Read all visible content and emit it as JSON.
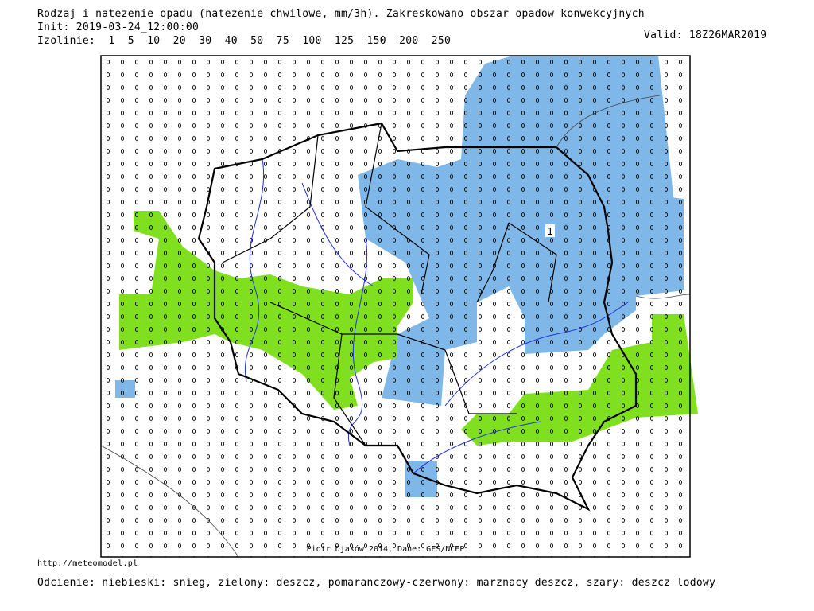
{
  "header": {
    "title": "Rodzaj i natezenie opadu (natezenie chwilowe, mm/3h). Zakreskowano obszar opadow konwekcyjnych",
    "init": "Init: 2019-03-24_12:00:00",
    "isolines": "Izolinie:  1  5  10  20  30  40  50  75  100  125  150  200  250",
    "valid": "Valid: 18Z26MAR2019"
  },
  "map": {
    "label": "1",
    "credit": "Piotr Djaków 2014, Dane: GFS/NCEP"
  },
  "footer": {
    "url": "http://meteomodel.pl",
    "legend": "Odcienie: niebieski: snieg, zielony: deszcz, pomaranczowy-czerwony: marznacy deszcz, szary: deszcz lodowy"
  }
}
